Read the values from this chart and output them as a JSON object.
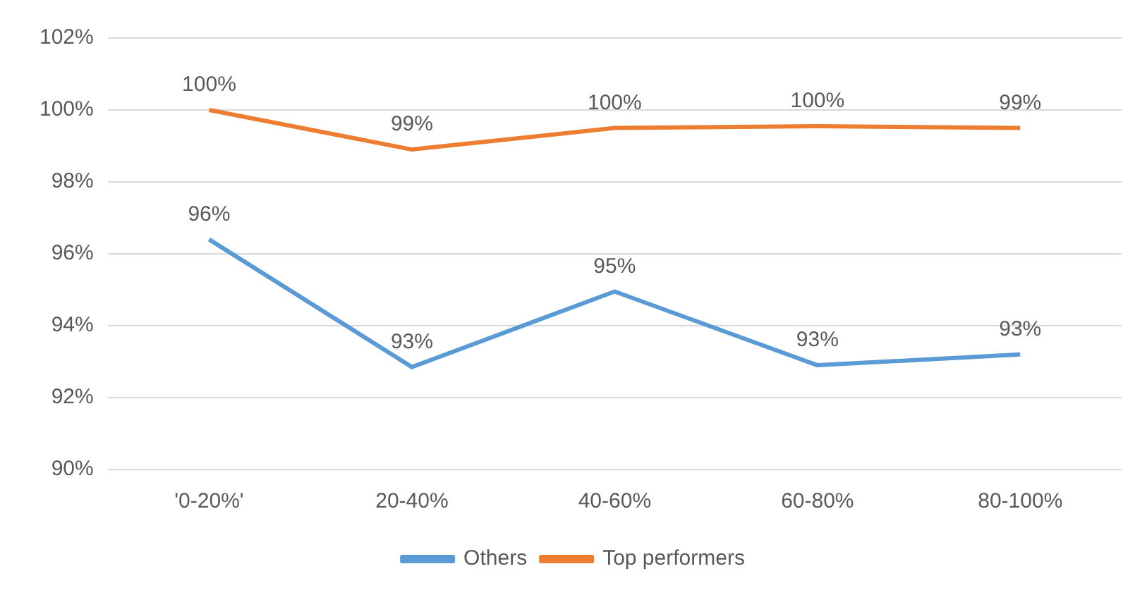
{
  "chart_data": {
    "type": "line",
    "categories": [
      "'0-20%'",
      "20-40%",
      "40-60%",
      "60-80%",
      "80-100%"
    ],
    "series": [
      {
        "name": "Others",
        "color": "#5b9bd5",
        "values": [
          96.4,
          92.85,
          94.95,
          92.9,
          93.2
        ],
        "value_labels": [
          "96%",
          "93%",
          "95%",
          "93%",
          "93%"
        ]
      },
      {
        "name": "Top performers",
        "color": "#ed7d31",
        "values": [
          100.0,
          98.9,
          99.5,
          99.55,
          99.5
        ],
        "value_labels": [
          "100%",
          "99%",
          "100%",
          "100%",
          "99%"
        ]
      }
    ],
    "ylim": [
      90,
      102
    ],
    "yticks": [
      {
        "value": 90,
        "label": "90%"
      },
      {
        "value": 92,
        "label": "92%"
      },
      {
        "value": 94,
        "label": "94%"
      },
      {
        "value": 96,
        "label": "96%"
      },
      {
        "value": 98,
        "label": "98%"
      },
      {
        "value": 100,
        "label": "100%"
      },
      {
        "value": 102,
        "label": "102%"
      }
    ],
    "grid": "y",
    "legend": "bottom",
    "marker": "none",
    "line_style": "solid"
  }
}
